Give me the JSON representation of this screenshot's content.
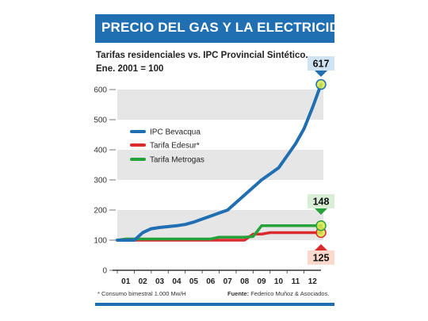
{
  "header": {
    "title": "PRECIO DEL GAS Y LA ELECTRICIDAD",
    "subtitle_line1": "Tarifas residenciales vs. IPC Provincial Sintético.",
    "subtitle_line2": "Ene. 2001 = 100"
  },
  "footer": {
    "footnote": "* Consumo bimestral 1.000 Mw/H",
    "source_label": "Fuente:",
    "source_text": "Federico Muñoz & Asociados."
  },
  "colors": {
    "ipc": "#1f6fb2",
    "edesur": "#d92b2b",
    "metrogas": "#25a23c",
    "band": "#e6e6e6",
    "highlight": "#d9e94a",
    "callout_ipc": "#cfe3f3",
    "callout_metrogas": "#d8efd6",
    "callout_edesur": "#fbd9cc",
    "brand": "#1f6fb2"
  },
  "chart_data": {
    "type": "line",
    "x": [
      0,
      0.5,
      1,
      1.5,
      2,
      2.5,
      3,
      3.5,
      4,
      4.5,
      5,
      5.5,
      6,
      6.5,
      7,
      7.5,
      8,
      8.5,
      9,
      9.5,
      10,
      10.5,
      11,
      11.5,
      12
    ],
    "x_ticks": [
      "01",
      "02",
      "03",
      "04",
      "05",
      "06",
      "07",
      "08",
      "09",
      "10",
      "11",
      "12"
    ],
    "x_tick_positions": [
      0.5,
      1.5,
      2.5,
      3.5,
      4.5,
      5.5,
      6.5,
      7.5,
      8.5,
      9.5,
      10.5,
      11.5
    ],
    "ylim": [
      0,
      620
    ],
    "y_ticks": [
      0,
      100,
      200,
      300,
      400,
      500,
      600
    ],
    "grid_bands": [
      [
        100,
        200
      ],
      [
        300,
        400
      ],
      [
        500,
        600
      ]
    ],
    "legend_position": "upper-left",
    "series": [
      {
        "name": "IPC Bevacqua",
        "color": "#1f6fb2",
        "values": [
          100,
          100,
          100,
          125,
          138,
          142,
          145,
          148,
          152,
          160,
          170,
          180,
          190,
          200,
          225,
          250,
          275,
          300,
          320,
          340,
          380,
          420,
          470,
          540,
          617
        ]
      },
      {
        "name": "Tarifa Edesur*",
        "color": "#d92b2b",
        "values": [
          100,
          100,
          100,
          100,
          100,
          100,
          100,
          100,
          100,
          100,
          100,
          100,
          100,
          100,
          100,
          100,
          120,
          120,
          125,
          125,
          125,
          125,
          125,
          125,
          125
        ]
      },
      {
        "name": "Tarifa Metrogas",
        "color": "#25a23c",
        "values": [
          100,
          104,
          104,
          104,
          104,
          104,
          104,
          104,
          104,
          104,
          104,
          104,
          110,
          110,
          110,
          110,
          112,
          148,
          148,
          148,
          148,
          148,
          148,
          148,
          148
        ]
      }
    ],
    "end_labels": [
      {
        "series": "IPC Bevacqua",
        "value": 617,
        "text": "617"
      },
      {
        "series": "Tarifa Metrogas",
        "value": 148,
        "text": "148"
      },
      {
        "series": "Tarifa Edesur*",
        "value": 125,
        "text": "125"
      }
    ]
  }
}
